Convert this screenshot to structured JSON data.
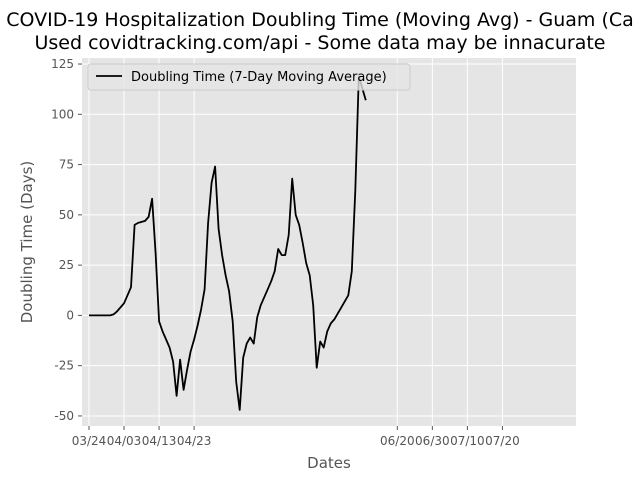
{
  "chart_data": {
    "type": "line",
    "title_lines": [
      "COVID-19 Hospitalization Doubling Time (Moving Avg) - Guam (Ca",
      "Used covidtracking.com/api - Some data may be innacurate"
    ],
    "xlabel": "Dates",
    "ylabel": "Doubling Time (Days)",
    "xlim": [
      "2020-03-22",
      "2020-08-10"
    ],
    "ylim": [
      -55,
      128
    ],
    "x_ticks": [
      "03/24",
      "04/03",
      "04/13",
      "04/23",
      "06/20",
      "06/30",
      "07/10",
      "07/20"
    ],
    "y_ticks": [
      125,
      100,
      75,
      50,
      25,
      0,
      -25,
      -50
    ],
    "grid": true,
    "legend_position": "upper-left",
    "series": [
      {
        "name": "Doubling Time (7-Day Moving Average)",
        "color": "#000000",
        "x": [
          "2020-03-24",
          "2020-03-25",
          "2020-03-26",
          "2020-03-27",
          "2020-03-28",
          "2020-03-29",
          "2020-03-30",
          "2020-03-31",
          "2020-04-01",
          "2020-04-02",
          "2020-04-03",
          "2020-04-04",
          "2020-04-05",
          "2020-04-06",
          "2020-04-07",
          "2020-04-08",
          "2020-04-09",
          "2020-04-10",
          "2020-04-11",
          "2020-04-12",
          "2020-04-13",
          "2020-04-14",
          "2020-04-15",
          "2020-04-16",
          "2020-04-17",
          "2020-04-18",
          "2020-04-19",
          "2020-04-20",
          "2020-04-21",
          "2020-04-22",
          "2020-04-23",
          "2020-04-24",
          "2020-04-25",
          "2020-04-26",
          "2020-04-27",
          "2020-04-28",
          "2020-04-29",
          "2020-04-30",
          "2020-05-01",
          "2020-05-02",
          "2020-05-03",
          "2020-05-04",
          "2020-05-05",
          "2020-05-06",
          "2020-05-07",
          "2020-05-08",
          "2020-05-09",
          "2020-05-10",
          "2020-05-11",
          "2020-05-12",
          "2020-05-13",
          "2020-05-14",
          "2020-05-15",
          "2020-05-16",
          "2020-05-17",
          "2020-05-18",
          "2020-05-19",
          "2020-05-20",
          "2020-05-21",
          "2020-05-22",
          "2020-05-23",
          "2020-05-24",
          "2020-05-25",
          "2020-05-26",
          "2020-05-27",
          "2020-05-28",
          "2020-05-29",
          "2020-05-30",
          "2020-05-31",
          "2020-06-01",
          "2020-06-02",
          "2020-06-03",
          "2020-06-04",
          "2020-06-05",
          "2020-06-06",
          "2020-06-07",
          "2020-06-08",
          "2020-06-09",
          "2020-06-10",
          "2020-06-11"
        ],
        "values": [
          0,
          0,
          0,
          0,
          0,
          0,
          0,
          0.5,
          2,
          4,
          6,
          10,
          14,
          45,
          46,
          46.5,
          47,
          49,
          58,
          31,
          -3,
          -8,
          -12,
          -16,
          -23,
          -40,
          -22,
          -37,
          -27,
          -18,
          -12,
          -5,
          3,
          13,
          46,
          66,
          74,
          43,
          30,
          20,
          12,
          -3,
          -33,
          -47,
          -21,
          -14,
          -11,
          -14,
          -1,
          5,
          9,
          13,
          17,
          22,
          33,
          30,
          30,
          40,
          68,
          50,
          45,
          36,
          26,
          20,
          5,
          -26,
          -13,
          -16,
          -8,
          -4,
          -2,
          1,
          4,
          7,
          10,
          22,
          62,
          119,
          113,
          107
        ]
      }
    ]
  }
}
